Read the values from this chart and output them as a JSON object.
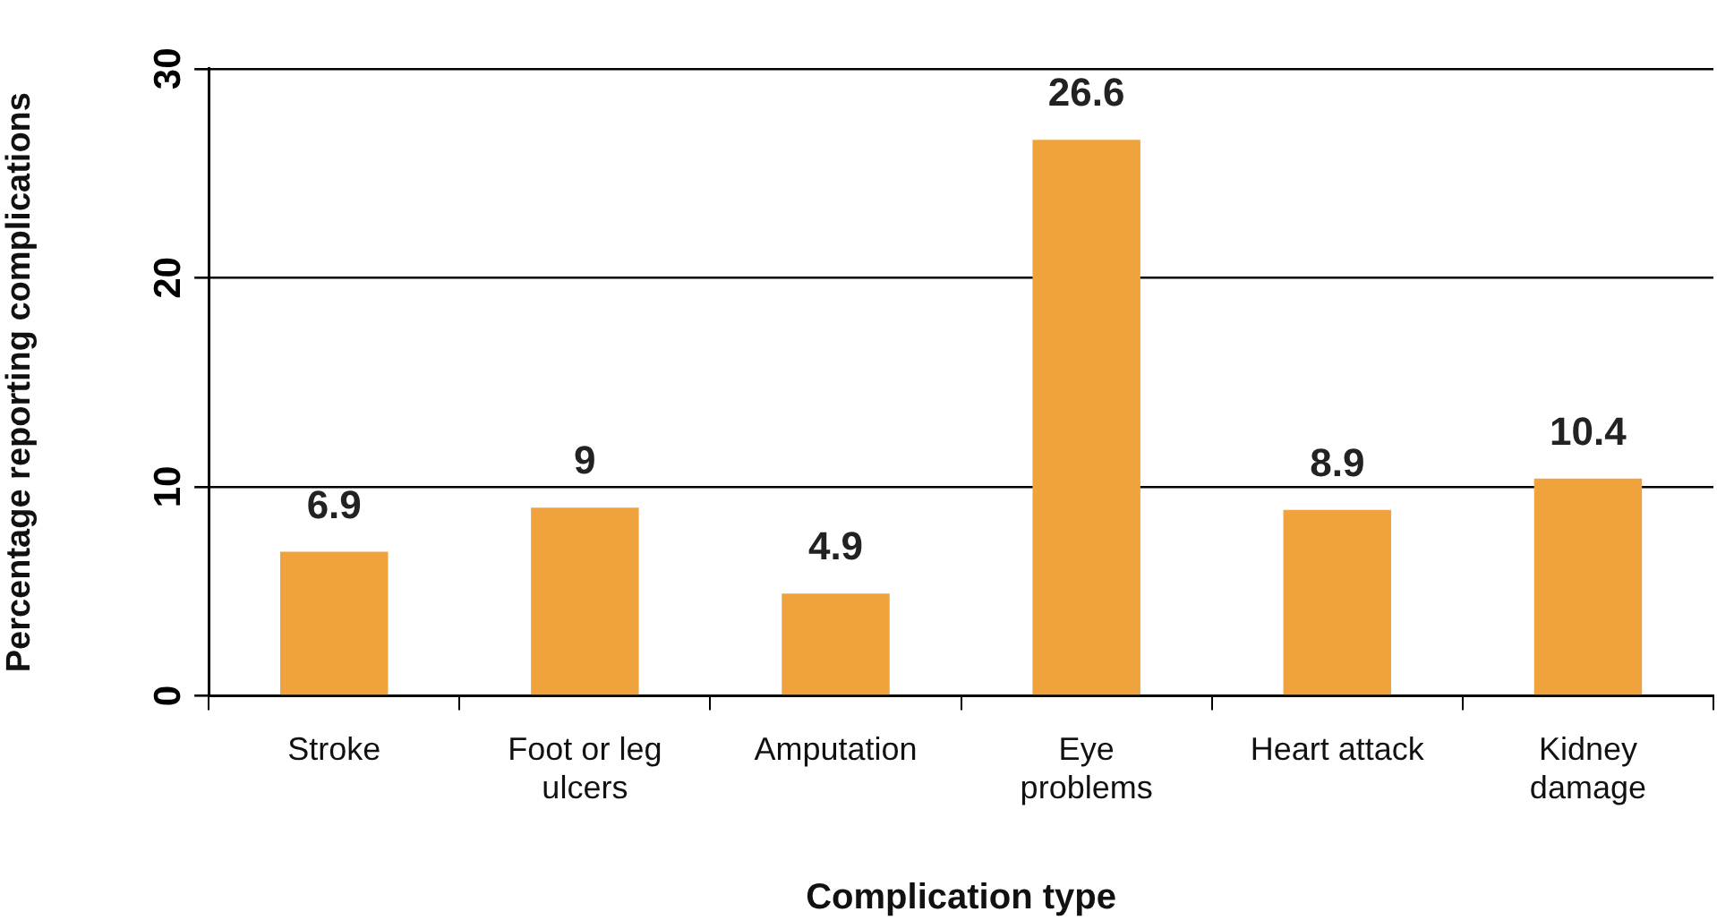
{
  "chart_data": {
    "type": "bar",
    "xlabel": "Complication type",
    "ylabel": "Percentage reporting complications",
    "categories": [
      "Stroke",
      "Foot or leg\nulcers",
      "Amputation",
      "Eye\nproblems",
      "Heart attack",
      "Kidney\ndamage"
    ],
    "values": [
      6.9,
      9,
      4.9,
      26.6,
      8.9,
      10.4
    ],
    "color": "#f0a33c",
    "ylim": [
      0,
      30
    ],
    "yticks": [
      0,
      10,
      20,
      30
    ],
    "grid": "y",
    "data_labels": true
  }
}
